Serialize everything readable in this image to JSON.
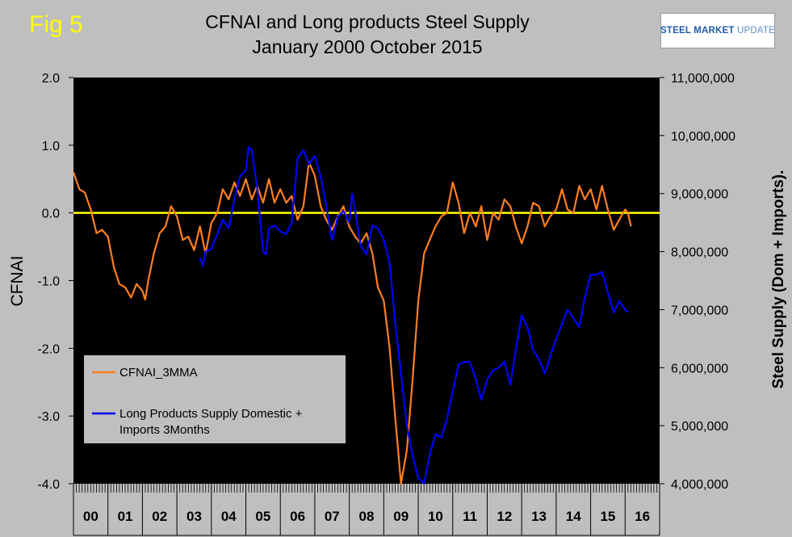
{
  "figure_label": "Fig 5",
  "logo": {
    "brand": "STEEL MARKET",
    "word": "UPDATE"
  },
  "chart_data": {
    "type": "line",
    "title": "CFNAI and Long products Steel Supply",
    "subtitle": "January 2000 October 2015",
    "y_left": {
      "label": "CFNAI",
      "range": [
        -4.0,
        2.0
      ],
      "ticks": [
        "2.0",
        "1.0",
        "0.0",
        "-1.0",
        "-2.0",
        "-3.0",
        "-4.0"
      ]
    },
    "y_right": {
      "label": "Steel Supply (Dom + Imports).",
      "range": [
        4000000,
        11000000
      ],
      "ticks": [
        "11,000,000",
        "10,000,000",
        "9,000,000",
        "8,000,000",
        "7,000,000",
        "6,000,000",
        "5,000,000",
        "4,000,000"
      ]
    },
    "x_year_labels": [
      "00",
      "01",
      "02",
      "03",
      "04",
      "05",
      "06",
      "07",
      "08",
      "09",
      "10",
      "11",
      "12",
      "13",
      "14",
      "15",
      "16"
    ],
    "reference_line": {
      "y": 0,
      "color": "#ffff00"
    },
    "grid": false,
    "legend_position": "bottom-left",
    "series": [
      {
        "name": "CFNAI_3MMA",
        "axis": "left",
        "color": "#ff7f1f",
        "points": [
          [
            2000.0,
            0.6
          ],
          [
            2000.17,
            0.35
          ],
          [
            2000.33,
            0.3
          ],
          [
            2000.5,
            0.05
          ],
          [
            2000.67,
            -0.3
          ],
          [
            2000.83,
            -0.25
          ],
          [
            2001.0,
            -0.35
          ],
          [
            2001.17,
            -0.8
          ],
          [
            2001.33,
            -1.05
          ],
          [
            2001.5,
            -1.1
          ],
          [
            2001.67,
            -1.25
          ],
          [
            2001.83,
            -1.05
          ],
          [
            2002.0,
            -1.15
          ],
          [
            2002.08,
            -1.28
          ],
          [
            2002.17,
            -1.0
          ],
          [
            2002.33,
            -0.6
          ],
          [
            2002.5,
            -0.3
          ],
          [
            2002.67,
            -0.2
          ],
          [
            2002.83,
            0.1
          ],
          [
            2003.0,
            -0.05
          ],
          [
            2003.17,
            -0.4
          ],
          [
            2003.33,
            -0.35
          ],
          [
            2003.5,
            -0.55
          ],
          [
            2003.67,
            -0.2
          ],
          [
            2003.83,
            -0.6
          ],
          [
            2004.0,
            -0.15
          ],
          [
            2004.17,
            0.0
          ],
          [
            2004.33,
            0.35
          ],
          [
            2004.5,
            0.2
          ],
          [
            2004.67,
            0.45
          ],
          [
            2004.83,
            0.25
          ],
          [
            2005.0,
            0.5
          ],
          [
            2005.17,
            0.2
          ],
          [
            2005.33,
            0.4
          ],
          [
            2005.5,
            0.15
          ],
          [
            2005.67,
            0.5
          ],
          [
            2005.83,
            0.15
          ],
          [
            2006.0,
            0.35
          ],
          [
            2006.17,
            0.15
          ],
          [
            2006.33,
            0.25
          ],
          [
            2006.5,
            -0.1
          ],
          [
            2006.67,
            0.1
          ],
          [
            2006.83,
            0.75
          ],
          [
            2007.0,
            0.55
          ],
          [
            2007.17,
            0.1
          ],
          [
            2007.33,
            -0.1
          ],
          [
            2007.5,
            -0.25
          ],
          [
            2007.67,
            -0.05
          ],
          [
            2007.83,
            0.1
          ],
          [
            2008.0,
            -0.2
          ],
          [
            2008.17,
            -0.35
          ],
          [
            2008.33,
            -0.45
          ],
          [
            2008.5,
            -0.3
          ],
          [
            2008.67,
            -0.6
          ],
          [
            2008.83,
            -1.1
          ],
          [
            2009.0,
            -1.3
          ],
          [
            2009.17,
            -2.0
          ],
          [
            2009.33,
            -3.0
          ],
          [
            2009.5,
            -4.0
          ],
          [
            2009.67,
            -3.5
          ],
          [
            2009.83,
            -2.5
          ],
          [
            2010.0,
            -1.3
          ],
          [
            2010.17,
            -0.6
          ],
          [
            2010.33,
            -0.4
          ],
          [
            2010.5,
            -0.2
          ],
          [
            2010.67,
            -0.05
          ],
          [
            2010.83,
            0.0
          ],
          [
            2011.0,
            0.45
          ],
          [
            2011.17,
            0.15
          ],
          [
            2011.33,
            -0.3
          ],
          [
            2011.5,
            0.0
          ],
          [
            2011.67,
            -0.2
          ],
          [
            2011.83,
            0.1
          ],
          [
            2012.0,
            -0.4
          ],
          [
            2012.17,
            0.0
          ],
          [
            2012.33,
            -0.1
          ],
          [
            2012.5,
            0.2
          ],
          [
            2012.67,
            0.1
          ],
          [
            2012.83,
            -0.2
          ],
          [
            2013.0,
            -0.45
          ],
          [
            2013.17,
            -0.2
          ],
          [
            2013.33,
            0.15
          ],
          [
            2013.5,
            0.1
          ],
          [
            2013.67,
            -0.2
          ],
          [
            2013.83,
            -0.05
          ],
          [
            2014.0,
            0.05
          ],
          [
            2014.17,
            0.35
          ],
          [
            2014.33,
            0.05
          ],
          [
            2014.5,
            0.0
          ],
          [
            2014.67,
            0.4
          ],
          [
            2014.83,
            0.2
          ],
          [
            2015.0,
            0.35
          ],
          [
            2015.17,
            0.05
          ],
          [
            2015.33,
            0.4
          ],
          [
            2015.5,
            0.05
          ],
          [
            2015.67,
            -0.25
          ],
          [
            2015.83,
            -0.1
          ],
          [
            2016.0,
            0.05
          ],
          [
            2016.08,
            0.0
          ],
          [
            2016.17,
            -0.2
          ]
        ]
      },
      {
        "name": "Long Products Supply Domestic + Imports 3Months",
        "axis": "right",
        "color": "#0000ff",
        "points": [
          [
            2003.67,
            7900000.0
          ],
          [
            2003.75,
            7750000.0
          ],
          [
            2003.83,
            8000000.0
          ],
          [
            2004.0,
            8050000.0
          ],
          [
            2004.17,
            8300000.0
          ],
          [
            2004.33,
            8550000.0
          ],
          [
            2004.5,
            8400000.0
          ],
          [
            2004.67,
            8900000.0
          ],
          [
            2004.83,
            9300000.0
          ],
          [
            2005.0,
            9400000.0
          ],
          [
            2005.08,
            9800000.0
          ],
          [
            2005.17,
            9750000.0
          ],
          [
            2005.33,
            9100000.0
          ],
          [
            2005.5,
            8000000.0
          ],
          [
            2005.58,
            7950000.0
          ],
          [
            2005.67,
            8400000.0
          ],
          [
            2005.83,
            8450000.0
          ],
          [
            2006.0,
            8350000.0
          ],
          [
            2006.17,
            8300000.0
          ],
          [
            2006.33,
            8500000.0
          ],
          [
            2006.5,
            9600000.0
          ],
          [
            2006.67,
            9750000.0
          ],
          [
            2006.83,
            9500000.0
          ],
          [
            2007.0,
            9650000.0
          ],
          [
            2007.17,
            9300000.0
          ],
          [
            2007.33,
            8800000.0
          ],
          [
            2007.5,
            8200000.0
          ],
          [
            2007.67,
            8600000.0
          ],
          [
            2007.83,
            8700000.0
          ],
          [
            2008.0,
            8500000.0
          ],
          [
            2008.08,
            9000000.0
          ],
          [
            2008.17,
            8700000.0
          ],
          [
            2008.33,
            8100000.0
          ],
          [
            2008.5,
            7950000.0
          ],
          [
            2008.67,
            8450000.0
          ],
          [
            2008.83,
            8400000.0
          ],
          [
            2009.0,
            8200000.0
          ],
          [
            2009.17,
            7800000.0
          ],
          [
            2009.33,
            6800000.0
          ],
          [
            2009.5,
            5900000.0
          ],
          [
            2009.67,
            5000000.0
          ],
          [
            2009.83,
            4500000.0
          ],
          [
            2010.0,
            4100000.0
          ],
          [
            2010.17,
            4000000.0
          ],
          [
            2010.33,
            4500000.0
          ],
          [
            2010.5,
            4850000.0
          ],
          [
            2010.67,
            4800000.0
          ],
          [
            2010.83,
            5100000.0
          ],
          [
            2011.0,
            5600000.0
          ],
          [
            2011.17,
            6050000.0
          ],
          [
            2011.33,
            6100000.0
          ],
          [
            2011.5,
            6100000.0
          ],
          [
            2011.67,
            5800000.0
          ],
          [
            2011.83,
            5450000.0
          ],
          [
            2012.0,
            5800000.0
          ],
          [
            2012.17,
            5950000.0
          ],
          [
            2012.33,
            6000000.0
          ],
          [
            2012.5,
            6100000.0
          ],
          [
            2012.67,
            5700000.0
          ],
          [
            2012.83,
            6300000.0
          ],
          [
            2013.0,
            6900000.0
          ],
          [
            2013.17,
            6700000.0
          ],
          [
            2013.33,
            6300000.0
          ],
          [
            2013.5,
            6150000.0
          ],
          [
            2013.67,
            5900000.0
          ],
          [
            2013.83,
            6200000.0
          ],
          [
            2014.0,
            6500000.0
          ],
          [
            2014.17,
            6750000.0
          ],
          [
            2014.33,
            7000000.0
          ],
          [
            2014.5,
            6850000.0
          ],
          [
            2014.67,
            6700000.0
          ],
          [
            2014.83,
            7200000.0
          ],
          [
            2015.0,
            7600000.0
          ],
          [
            2015.17,
            7600000.0
          ],
          [
            2015.33,
            7650000.0
          ],
          [
            2015.5,
            7300000.0
          ],
          [
            2015.67,
            6950000.0
          ],
          [
            2015.83,
            7150000.0
          ],
          [
            2016.0,
            7000000.0
          ],
          [
            2016.08,
            6950000.0
          ]
        ]
      }
    ]
  }
}
